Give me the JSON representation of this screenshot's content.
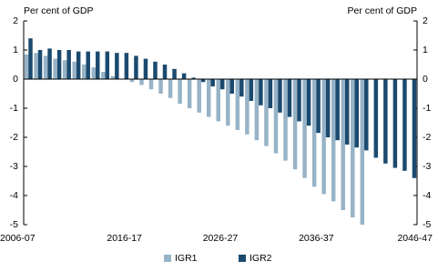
{
  "chart_data": {
    "type": "bar",
    "y_label": "Per cent of GDP",
    "y2_label": "Per cent of GDP",
    "categories": [
      "2006-07",
      null,
      null,
      null,
      null,
      null,
      null,
      null,
      null,
      null,
      "2016-17",
      null,
      null,
      null,
      null,
      null,
      null,
      null,
      null,
      null,
      "2026-27",
      null,
      null,
      null,
      null,
      null,
      null,
      null,
      null,
      null,
      "2036-37",
      null,
      null,
      null,
      null,
      null,
      null,
      null,
      null,
      null,
      "2046-47"
    ],
    "series": [
      {
        "name": "IGR1",
        "color": "#97b3c7",
        "values": [
          0.85,
          0.9,
          0.8,
          0.7,
          0.65,
          0.6,
          0.5,
          0.4,
          0.25,
          0.1,
          0.0,
          -0.1,
          -0.2,
          -0.35,
          -0.5,
          -0.65,
          -0.85,
          -1.0,
          -1.15,
          -1.3,
          -1.45,
          -1.6,
          -1.75,
          -1.9,
          -2.1,
          -2.3,
          -2.55,
          -2.8,
          -3.1,
          -3.4,
          -3.7,
          -3.95,
          -4.2,
          -4.5,
          -4.75,
          -5.0,
          null,
          null,
          null,
          null,
          null
        ]
      },
      {
        "name": "IGR2",
        "color": "#1b4a6e",
        "values": [
          1.4,
          1.0,
          1.05,
          1.0,
          1.0,
          0.95,
          0.95,
          0.95,
          0.95,
          0.9,
          0.9,
          0.8,
          0.7,
          0.6,
          0.5,
          0.35,
          0.2,
          0.05,
          -0.1,
          -0.25,
          -0.35,
          -0.5,
          -0.6,
          -0.75,
          -0.9,
          -1.0,
          -1.15,
          -1.3,
          -1.45,
          -1.6,
          -1.85,
          -2.0,
          -2.1,
          -2.25,
          -2.35,
          -2.45,
          -2.7,
          -2.9,
          -3.05,
          -3.15,
          -3.4
        ]
      }
    ],
    "ylim": [
      -5,
      2
    ],
    "yticks": [
      -5,
      -4,
      -3,
      -2,
      -1,
      0,
      1,
      2
    ],
    "y2lim": [
      -5,
      2
    ],
    "y2ticks": [
      -5,
      -4,
      -3,
      -2,
      -1,
      0,
      1,
      2
    ],
    "grid": false
  }
}
